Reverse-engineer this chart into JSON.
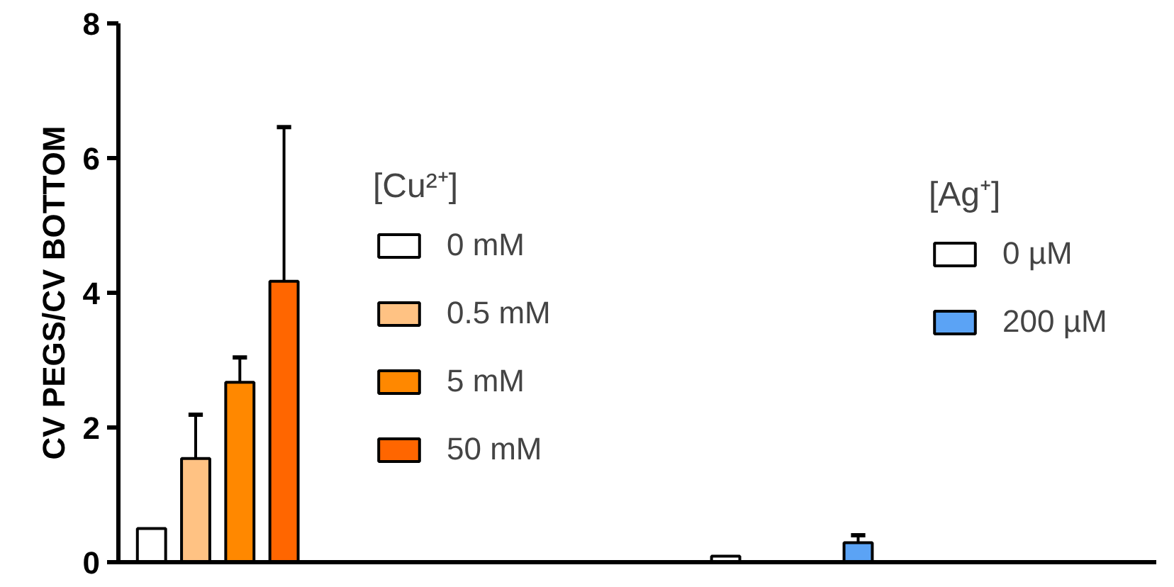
{
  "chart_data": {
    "type": "bar",
    "ylabel": "CV PEGS/CV BOTTOM",
    "legend_title": "[Cu²⁺]",
    "annotations": [
      "[Ag⁺]"
    ],
    "legend": "right",
    "tick_labels": "y",
    "ylim": [
      0,
      8
    ],
    "yticks": [
      0,
      2,
      4,
      6,
      8
    ],
    "categories": [
      null,
      null,
      null,
      null,
      null,
      null,
      null,
      null,
      null,
      null,
      null,
      null,
      null,
      null,
      null,
      null,
      null,
      null,
      null,
      null,
      null,
      null,
      null,
      null,
      null,
      null,
      null,
      null,
      null,
      null,
      null,
      null,
      null,
      null,
      null,
      null,
      null,
      null,
      null,
      null,
      null,
      null,
      null,
      null,
      null,
      null,
      null
    ],
    "series": [
      {
        "name": "0 mM",
        "color": "#ffffff",
        "values": [
          null,
          0.5,
          null,
          null,
          null,
          null,
          null,
          null,
          null,
          null,
          null,
          null,
          null,
          null,
          null,
          null,
          null,
          null,
          null,
          null,
          null,
          null,
          null,
          null,
          null,
          null,
          null,
          null,
          null,
          null,
          null,
          null,
          null,
          null,
          null,
          null,
          null,
          null,
          null,
          null,
          null,
          null,
          null,
          null,
          null,
          null,
          null
        ]
      },
      {
        "name": "0.5 mM",
        "color": "#ffc283",
        "values": [
          null,
          null,
          null,
          1.54,
          null,
          null,
          null,
          null,
          null,
          null,
          null,
          null,
          null,
          null,
          null,
          null,
          null,
          null,
          null,
          null,
          null,
          null,
          null,
          null,
          null,
          null,
          null,
          null,
          null,
          null,
          null,
          null,
          null,
          null,
          null,
          null,
          null,
          null,
          null,
          null,
          null,
          null,
          null,
          null,
          null,
          null,
          null
        ],
        "errors": [
          null,
          null,
          null,
          [
            1.54,
            2.19
          ],
          null,
          null,
          null,
          null,
          null,
          null,
          null,
          null,
          null,
          null,
          null,
          null,
          null,
          null,
          null,
          null,
          null,
          null,
          null,
          null,
          null,
          null,
          null,
          null,
          null,
          null,
          null,
          null,
          null,
          null,
          null,
          null,
          null,
          null,
          null,
          null,
          null,
          null,
          null,
          null,
          null,
          null,
          null
        ]
      },
      {
        "name": "5 mM",
        "color": "#ff8800",
        "values": [
          null,
          null,
          null,
          null,
          null,
          2.67,
          null,
          null,
          null,
          null,
          null,
          null,
          null,
          null,
          null,
          null,
          null,
          null,
          null,
          null,
          null,
          null,
          null,
          null,
          null,
          null,
          null,
          null,
          null,
          null,
          null,
          null,
          null,
          null,
          null,
          null,
          null,
          null,
          null,
          null,
          null,
          null,
          null,
          null,
          null,
          null,
          null
        ],
        "errors": [
          null,
          null,
          null,
          null,
          null,
          [
            2.67,
            3.04
          ],
          null,
          null,
          null,
          null,
          null,
          null,
          null,
          null,
          null,
          null,
          null,
          null,
          null,
          null,
          null,
          null,
          null,
          null,
          null,
          null,
          null,
          null,
          null,
          null,
          null,
          null,
          null,
          null,
          null,
          null,
          null,
          null,
          null,
          null,
          null,
          null,
          null,
          null,
          null,
          null,
          null
        ]
      },
      {
        "name": "50 mM",
        "color": "#ff6600",
        "values": [
          null,
          null,
          null,
          null,
          null,
          null,
          null,
          4.17,
          null,
          null,
          null,
          null,
          null,
          null,
          null,
          null,
          null,
          null,
          null,
          null,
          null,
          null,
          null,
          null,
          null,
          null,
          null,
          null,
          null,
          null,
          null,
          null,
          null,
          null,
          null,
          null,
          null,
          null,
          null,
          null,
          null,
          null,
          null,
          null,
          null,
          null,
          null
        ],
        "errors": [
          null,
          null,
          null,
          null,
          null,
          null,
          null,
          [
            4.17,
            6.46
          ],
          null,
          null,
          null,
          null,
          null,
          null,
          null,
          null,
          null,
          null,
          null,
          null,
          null,
          null,
          null,
          null,
          null,
          null,
          null,
          null,
          null,
          null,
          null,
          null,
          null,
          null,
          null,
          null,
          null,
          null,
          null,
          null,
          null,
          null,
          null,
          null,
          null,
          null,
          null
        ]
      },
      {
        "name": "0 µM",
        "color": "#ffffff",
        "values": [
          null,
          null,
          null,
          null,
          null,
          null,
          null,
          null,
          null,
          null,
          null,
          null,
          null,
          null,
          null,
          null,
          null,
          null,
          null,
          null,
          null,
          null,
          null,
          null,
          null,
          null,
          null,
          0.09,
          null,
          null,
          null,
          null,
          null,
          null,
          null,
          null,
          null,
          null,
          null,
          null,
          null,
          null,
          null,
          null,
          null,
          null,
          null
        ]
      },
      {
        "name": "200 µM",
        "color": "#5ba3f5",
        "values": [
          null,
          null,
          null,
          null,
          null,
          null,
          null,
          null,
          null,
          null,
          null,
          null,
          null,
          null,
          null,
          null,
          null,
          null,
          null,
          null,
          null,
          null,
          null,
          null,
          null,
          null,
          null,
          null,
          null,
          null,
          null,
          null,
          null,
          0.29,
          null,
          null,
          null,
          null,
          null,
          null,
          null,
          null,
          null,
          null,
          null,
          null,
          null
        ],
        "errors": [
          null,
          null,
          null,
          null,
          null,
          null,
          null,
          null,
          null,
          null,
          null,
          null,
          null,
          null,
          null,
          null,
          null,
          null,
          null,
          null,
          null,
          null,
          null,
          null,
          null,
          null,
          null,
          null,
          null,
          null,
          null,
          null,
          null,
          [
            0.29,
            0.4
          ],
          null,
          null,
          null,
          null,
          null,
          null,
          null,
          null,
          null,
          null,
          null,
          null,
          null
        ]
      }
    ]
  }
}
